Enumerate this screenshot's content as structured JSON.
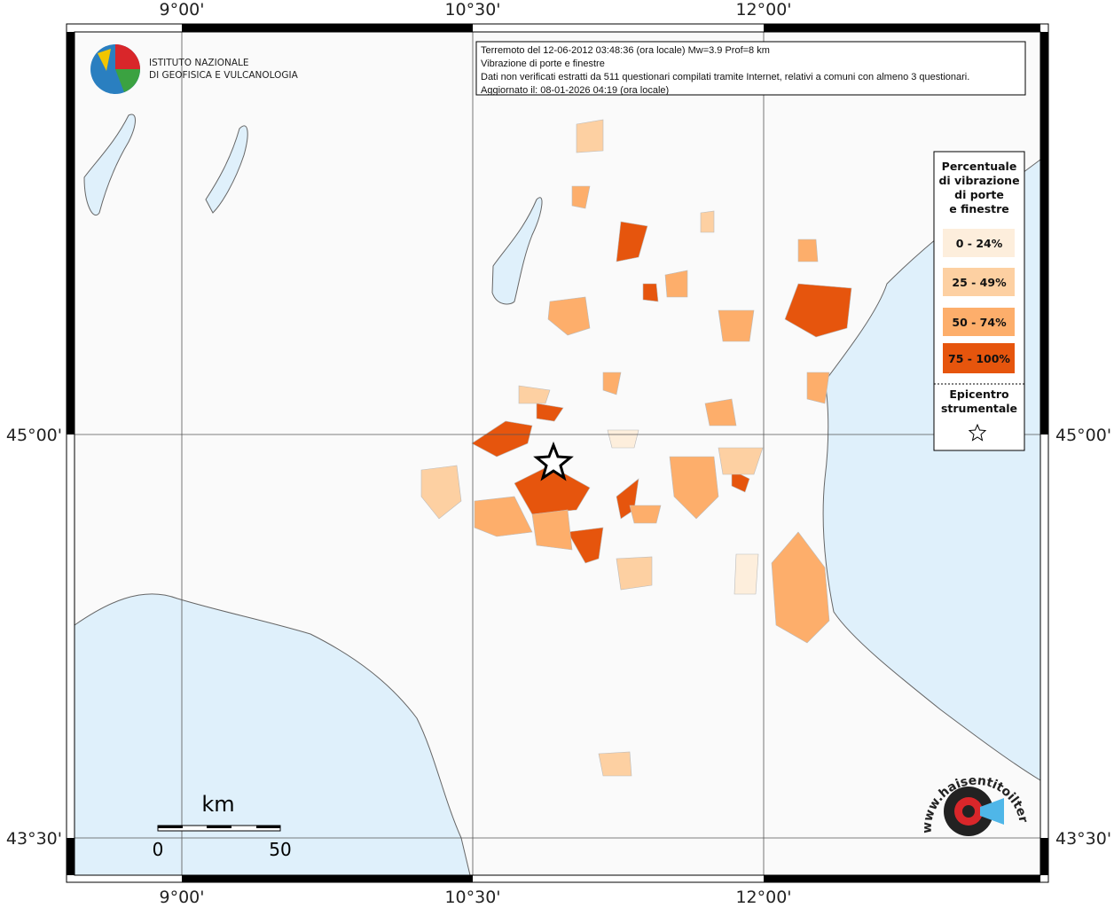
{
  "info": {
    "lines": [
      "Terremoto del 12-06-2012 03:48:36 (ora locale) Mw=3.9 Prof=8 km",
      "Vibrazione di porte e finestre",
      "Dati non verificati estratti da 511 questionari compilati tramite Internet, relativi a comuni con almeno 3 questionari.",
      "Aggiornato il: 08-01-2026 04:19 (ora locale)"
    ]
  },
  "logo": {
    "line1": "ISTITUTO NAZIONALE",
    "line2": "DI GEOFISICA E VULCANOLOGIA"
  },
  "longitudes": [
    "9°00'",
    "10°30'",
    "12°00'"
  ],
  "latitudes": [
    "45°00'",
    "43°30'"
  ],
  "legend": {
    "title": [
      "Percentuale",
      "di vibrazione",
      "di porte",
      "e finestre"
    ],
    "classes": [
      {
        "label": "0 - 24%",
        "color": "#fdeedc"
      },
      {
        "label": "25 - 49%",
        "color": "#fdd0a2"
      },
      {
        "label": "50 - 74%",
        "color": "#fdae6b"
      },
      {
        "label": "75 - 100%",
        "color": "#e6550d"
      }
    ],
    "epicenter": [
      "Epicentro",
      "strumentale"
    ]
  },
  "scale": {
    "unit": "km",
    "labels": [
      "0",
      "50"
    ]
  },
  "watermark": "www.haisentitoilterremoto.it"
}
